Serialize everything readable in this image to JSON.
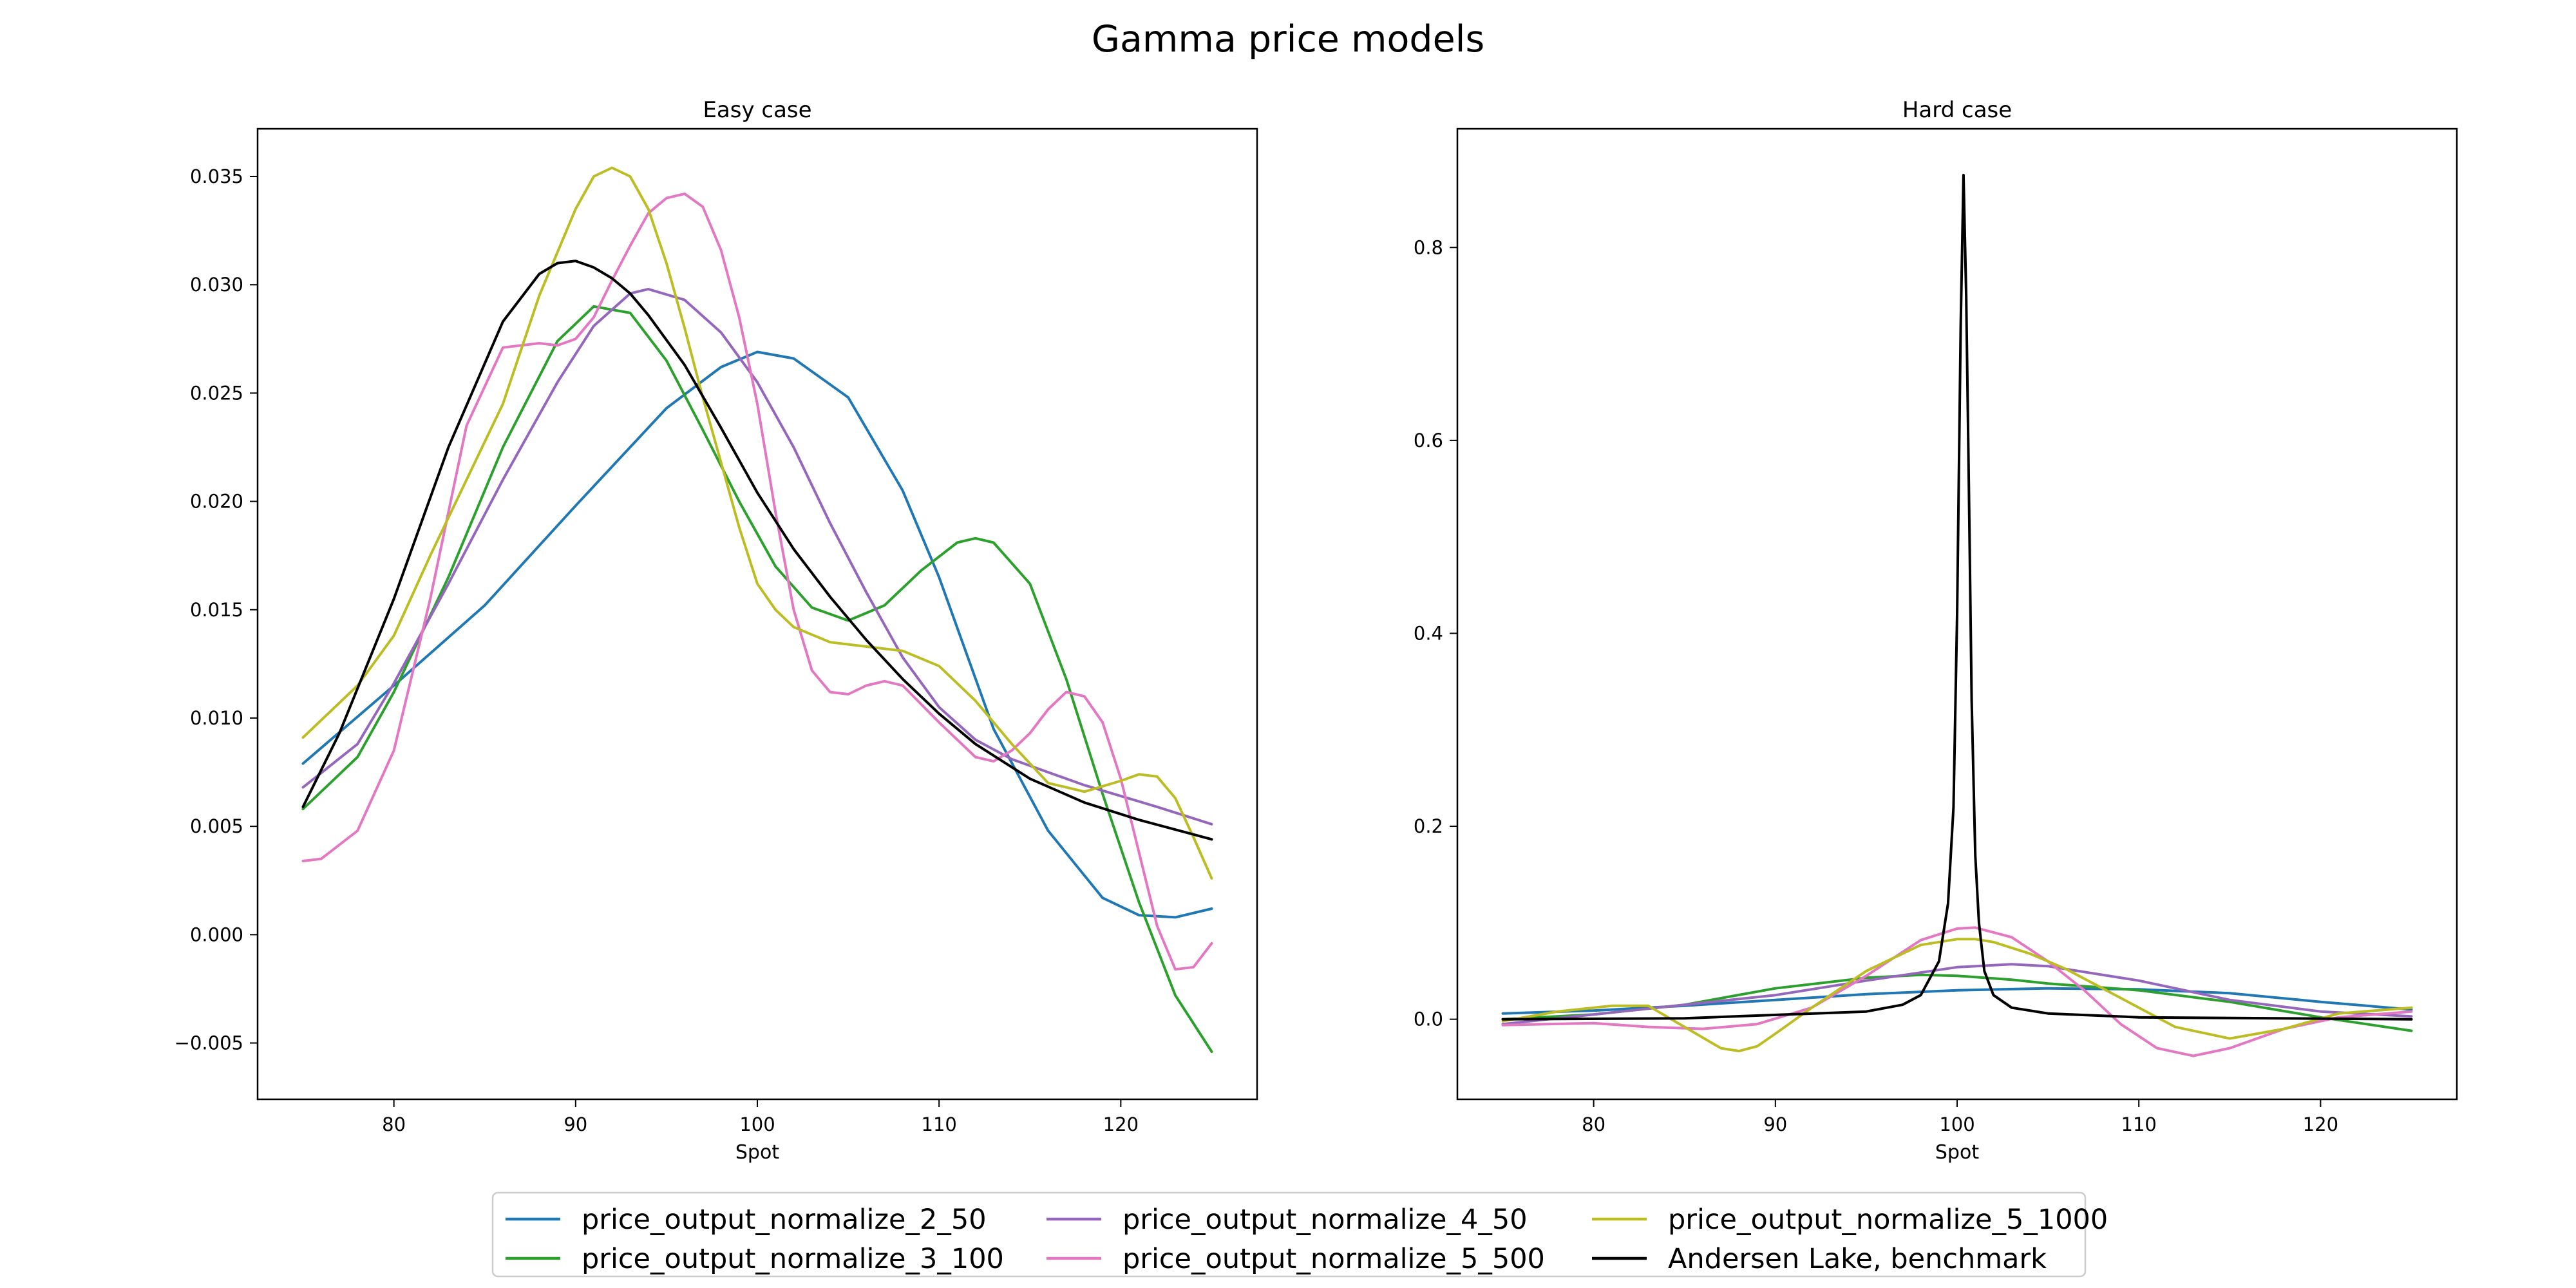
{
  "figure": {
    "suptitle": "Gamma price models"
  },
  "legend": {
    "placement": "bottom-center",
    "entries": [
      {
        "name": "price_output_normalize_2_50",
        "color": "#1f77b4"
      },
      {
        "name": "price_output_normalize_3_100",
        "color": "#2ca02c"
      },
      {
        "name": "price_output_normalize_4_50",
        "color": "#9467bd"
      },
      {
        "name": "price_output_normalize_5_500",
        "color": "#e377c2"
      },
      {
        "name": "price_output_normalize_5_1000",
        "color": "#bcbd22"
      },
      {
        "name": "Andersen Lake, benchmark",
        "color": "#000000"
      }
    ]
  },
  "chart_data": [
    {
      "type": "line",
      "title": "Easy case",
      "xlabel": "Spot",
      "ylabel": "",
      "xlim": [
        72.5,
        127.5
      ],
      "ylim": [
        -0.0076,
        0.0372
      ],
      "xticks": [
        80,
        90,
        100,
        110,
        120
      ],
      "yticks": [
        -0.005,
        0.0,
        0.005,
        0.01,
        0.015,
        0.02,
        0.025,
        0.03,
        0.035
      ],
      "ytick_labels": [
        "−0.005",
        "0.000",
        "0.005",
        "0.010",
        "0.015",
        "0.020",
        "0.025",
        "0.030",
        "0.035"
      ],
      "grid": false,
      "series": [
        {
          "name": "price_output_normalize_2_50",
          "color": "#1f77b4",
          "x": [
            75,
            80,
            85,
            90,
            95,
            98,
            100,
            102,
            105,
            108,
            110,
            113,
            116,
            119,
            121,
            123,
            125
          ],
          "y": [
            0.0079,
            0.0115,
            0.0152,
            0.0198,
            0.0243,
            0.0262,
            0.0269,
            0.0266,
            0.0248,
            0.0205,
            0.0165,
            0.0095,
            0.0048,
            0.0017,
            0.0009,
            0.0008,
            0.0012
          ]
        },
        {
          "name": "price_output_normalize_3_100",
          "color": "#2ca02c",
          "x": [
            75,
            78,
            80,
            83,
            86,
            89,
            91,
            93,
            95,
            97,
            99,
            101,
            103,
            105,
            107,
            109,
            111,
            112,
            113,
            115,
            117,
            119,
            121,
            123,
            125
          ],
          "y": [
            0.0058,
            0.0082,
            0.0112,
            0.0165,
            0.0225,
            0.0274,
            0.029,
            0.0287,
            0.0265,
            0.0233,
            0.02,
            0.017,
            0.0151,
            0.0145,
            0.0152,
            0.0168,
            0.0181,
            0.0183,
            0.0181,
            0.0162,
            0.0118,
            0.0065,
            0.0015,
            -0.0028,
            -0.0054
          ]
        },
        {
          "name": "price_output_normalize_4_50",
          "color": "#9467bd",
          "x": [
            75,
            78,
            80,
            83,
            86,
            89,
            91,
            93,
            94,
            96,
            98,
            100,
            102,
            104,
            106,
            108,
            110,
            112,
            114,
            116,
            118,
            120,
            122,
            125
          ],
          "y": [
            0.0068,
            0.0088,
            0.0116,
            0.0162,
            0.021,
            0.0255,
            0.0281,
            0.0296,
            0.0298,
            0.0293,
            0.0278,
            0.0255,
            0.0225,
            0.019,
            0.0158,
            0.0128,
            0.0105,
            0.009,
            0.0081,
            0.0075,
            0.0069,
            0.0064,
            0.0059,
            0.0051
          ]
        },
        {
          "name": "price_output_normalize_5_500",
          "color": "#e377c2",
          "x": [
            75,
            76,
            78,
            80,
            82,
            84,
            86,
            88,
            89,
            90,
            91,
            92,
            93,
            94,
            95,
            96,
            97,
            98,
            99,
            100,
            101,
            102,
            103,
            104,
            105,
            106,
            107,
            108,
            110,
            112,
            113,
            114,
            115,
            116,
            117,
            118,
            119,
            120,
            121,
            122,
            123,
            124,
            125
          ],
          "y": [
            0.0034,
            0.0035,
            0.0048,
            0.0085,
            0.0155,
            0.0235,
            0.0271,
            0.0273,
            0.0272,
            0.0275,
            0.0285,
            0.0302,
            0.0318,
            0.0333,
            0.034,
            0.0342,
            0.0336,
            0.0316,
            0.0285,
            0.0245,
            0.0195,
            0.015,
            0.0122,
            0.0112,
            0.0111,
            0.0115,
            0.0117,
            0.0115,
            0.0098,
            0.0082,
            0.008,
            0.0085,
            0.0093,
            0.0104,
            0.0112,
            0.011,
            0.0098,
            0.0072,
            0.0038,
            0.0004,
            -0.0016,
            -0.0015,
            -0.0004
          ]
        },
        {
          "name": "price_output_normalize_5_1000",
          "color": "#bcbd22",
          "x": [
            75,
            78,
            80,
            82,
            84,
            86,
            88,
            90,
            91,
            92,
            93,
            94,
            95,
            96,
            97,
            98,
            99,
            100,
            101,
            102,
            104,
            106,
            108,
            110,
            112,
            114,
            116,
            118,
            120,
            121,
            122,
            123,
            124,
            125
          ],
          "y": [
            0.0091,
            0.0115,
            0.0138,
            0.0175,
            0.021,
            0.0245,
            0.0295,
            0.0335,
            0.035,
            0.0354,
            0.035,
            0.0335,
            0.031,
            0.028,
            0.0248,
            0.0218,
            0.0188,
            0.0162,
            0.015,
            0.0142,
            0.0135,
            0.0133,
            0.0131,
            0.0124,
            0.0108,
            0.0088,
            0.007,
            0.0066,
            0.0071,
            0.0074,
            0.0073,
            0.0063,
            0.0045,
            0.0026
          ]
        },
        {
          "name": "Andersen Lake, benchmark",
          "color": "#000000",
          "x": [
            75,
            77,
            80,
            83,
            86,
            88,
            89,
            90,
            91,
            92,
            93,
            94,
            96,
            98,
            100,
            102,
            104,
            106,
            108,
            110,
            112,
            115,
            118,
            121,
            125
          ],
          "y": [
            0.0059,
            0.0093,
            0.0155,
            0.0225,
            0.0283,
            0.0305,
            0.031,
            0.0311,
            0.0308,
            0.0303,
            0.0296,
            0.0286,
            0.0263,
            0.0234,
            0.0204,
            0.0178,
            0.0156,
            0.0136,
            0.0118,
            0.0102,
            0.0088,
            0.0072,
            0.0061,
            0.0053,
            0.0044
          ]
        }
      ]
    },
    {
      "type": "line",
      "title": "Hard case",
      "xlabel": "Spot",
      "ylabel": "",
      "xlim": [
        72.5,
        127.5
      ],
      "ylim": [
        -0.083,
        0.923
      ],
      "xticks": [
        80,
        90,
        100,
        110,
        120
      ],
      "yticks": [
        0.0,
        0.2,
        0.4,
        0.6,
        0.8
      ],
      "ytick_labels": [
        "0.0",
        "0.2",
        "0.4",
        "0.6",
        "0.8"
      ],
      "grid": false,
      "series": [
        {
          "name": "price_output_normalize_2_50",
          "color": "#1f77b4",
          "x": [
            75,
            80,
            85,
            90,
            95,
            100,
            105,
            110,
            115,
            120,
            125
          ],
          "y": [
            0.006,
            0.009,
            0.014,
            0.02,
            0.026,
            0.03,
            0.032,
            0.031,
            0.027,
            0.018,
            0.01
          ]
        },
        {
          "name": "price_output_normalize_3_100",
          "color": "#2ca02c",
          "x": [
            75,
            80,
            85,
            90,
            95,
            98,
            100,
            103,
            105,
            110,
            115,
            120,
            125
          ],
          "y": [
            0.0,
            0.005,
            0.015,
            0.032,
            0.043,
            0.046,
            0.045,
            0.041,
            0.037,
            0.03,
            0.018,
            0.002,
            -0.012
          ]
        },
        {
          "name": "price_output_normalize_4_50",
          "color": "#9467bd",
          "x": [
            75,
            80,
            85,
            90,
            95,
            100,
            103,
            105,
            110,
            115,
            120,
            125
          ],
          "y": [
            -0.005,
            0.005,
            0.015,
            0.025,
            0.04,
            0.054,
            0.057,
            0.055,
            0.04,
            0.02,
            0.008,
            0.003
          ]
        },
        {
          "name": "price_output_normalize_5_500",
          "color": "#e377c2",
          "x": [
            75,
            80,
            83,
            86,
            89,
            92,
            95,
            98,
            100,
            101,
            103,
            105,
            107,
            109,
            111,
            113,
            115,
            118,
            121,
            125
          ],
          "y": [
            -0.006,
            -0.004,
            -0.008,
            -0.01,
            -0.005,
            0.012,
            0.045,
            0.082,
            0.094,
            0.095,
            0.085,
            0.06,
            0.03,
            -0.005,
            -0.03,
            -0.038,
            -0.03,
            -0.01,
            0.002,
            0.008
          ]
        },
        {
          "name": "price_output_normalize_5_1000",
          "color": "#bcbd22",
          "x": [
            75,
            78,
            81,
            83,
            85,
            87,
            88,
            89,
            90,
            92,
            95,
            98,
            100,
            101,
            102,
            104,
            106,
            108,
            110,
            112,
            115,
            118,
            121,
            125
          ],
          "y": [
            -0.002,
            0.008,
            0.014,
            0.014,
            -0.008,
            -0.03,
            -0.033,
            -0.028,
            -0.015,
            0.012,
            0.05,
            0.077,
            0.083,
            0.083,
            0.08,
            0.068,
            0.052,
            0.032,
            0.012,
            -0.008,
            -0.02,
            -0.01,
            0.006,
            0.012
          ]
        },
        {
          "name": "Andersen Lake, benchmark",
          "color": "#000000",
          "x": [
            75,
            85,
            95,
            97,
            98,
            99,
            99.5,
            99.8,
            100,
            100.2,
            100.35,
            100.5,
            100.65,
            100.8,
            101,
            101.2,
            101.5,
            102,
            103,
            105,
            110,
            125
          ],
          "y": [
            0.0,
            0.001,
            0.008,
            0.015,
            0.025,
            0.06,
            0.12,
            0.22,
            0.42,
            0.72,
            0.875,
            0.75,
            0.55,
            0.33,
            0.17,
            0.1,
            0.05,
            0.025,
            0.012,
            0.006,
            0.002,
            0.0
          ]
        }
      ]
    }
  ]
}
